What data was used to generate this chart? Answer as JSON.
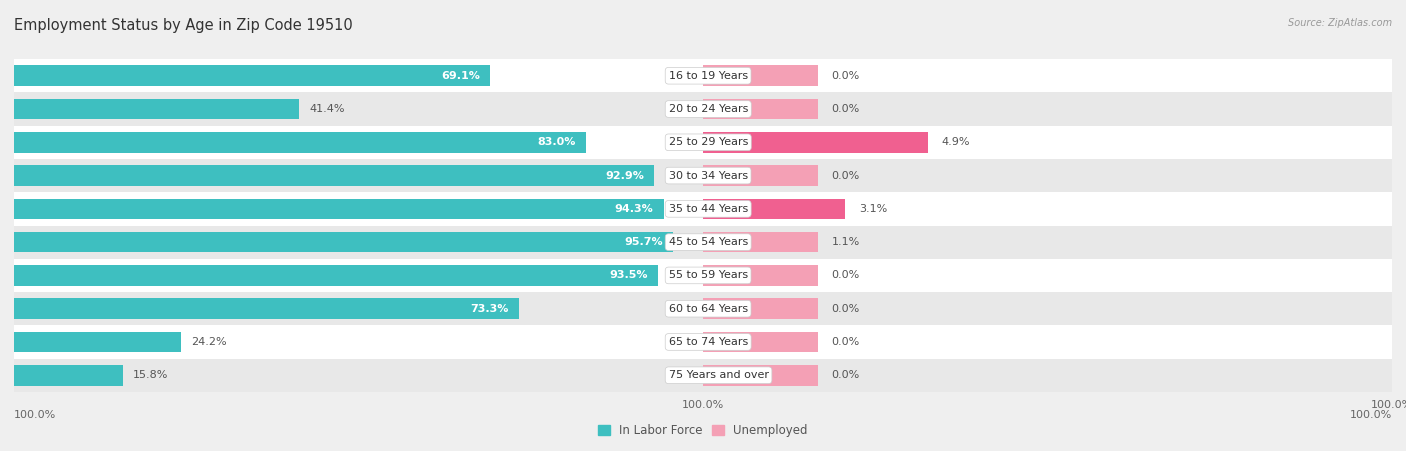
{
  "title": "Employment Status by Age in Zip Code 19510",
  "source": "Source: ZipAtlas.com",
  "categories": [
    "16 to 19 Years",
    "20 to 24 Years",
    "25 to 29 Years",
    "30 to 34 Years",
    "35 to 44 Years",
    "45 to 54 Years",
    "55 to 59 Years",
    "60 to 64 Years",
    "65 to 74 Years",
    "75 Years and over"
  ],
  "in_labor_force": [
    69.1,
    41.4,
    83.0,
    92.9,
    94.3,
    95.7,
    93.5,
    73.3,
    24.2,
    15.8
  ],
  "unemployed": [
    0.0,
    0.0,
    4.9,
    0.0,
    3.1,
    1.1,
    0.0,
    0.0,
    0.0,
    0.0
  ],
  "unemployed_small": 5.0,
  "labor_force_color": "#3ebfc0",
  "unemployed_color": "#f4a0b5",
  "unemployed_color_strong": "#f06090",
  "background_color": "#efefef",
  "row_white": "#ffffff",
  "row_light": "#e8e8e8",
  "bar_height": 0.62,
  "label_fontsize": 8.0,
  "title_fontsize": 10.5,
  "legend_fontsize": 8.5,
  "axis_label_fontsize": 8.0,
  "left_xlim": 100,
  "right_xlim": 15
}
